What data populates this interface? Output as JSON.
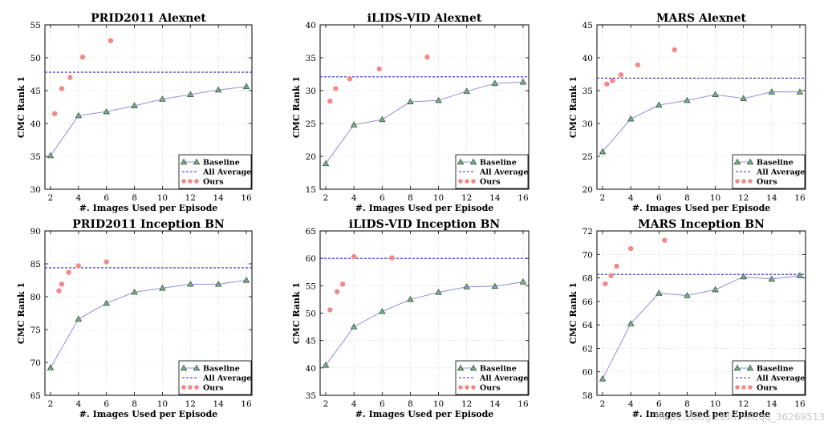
{
  "watermark": "https://blog.csdn.net/qq_36269513",
  "colors": {
    "baseline_line": "#8f8fe0",
    "baseline_marker_fill": "#7fae8c",
    "baseline_marker_edge": "#2d5a3b",
    "average": "#2a2ac8",
    "ours": "#f08a8a"
  },
  "chart_data": [
    {
      "type": "line",
      "title": "PRID2011 Alexnet",
      "xlabel": "#. Images Used per Episode",
      "ylabel": "CMC Rank 1",
      "xlim": [
        1.6,
        16.4
      ],
      "ylim": [
        30,
        55
      ],
      "xticks": [
        2,
        4,
        6,
        8,
        10,
        12,
        14,
        16
      ],
      "yticks": [
        30,
        35,
        40,
        45,
        50,
        55
      ],
      "legend": [
        "Baseline",
        "All Average",
        "Ours"
      ],
      "legend_position": "lower-right",
      "baseline": {
        "x": [
          2,
          4,
          6,
          8,
          10,
          12,
          14,
          16
        ],
        "y": [
          35.1,
          41.2,
          41.8,
          42.7,
          43.7,
          44.4,
          45.1,
          45.6
        ]
      },
      "all_average": 47.8,
      "ours": {
        "x": [
          2.3,
          2.8,
          3.4,
          4.3,
          6.3
        ],
        "y": [
          41.5,
          45.3,
          47.0,
          50.1,
          52.6
        ]
      }
    },
    {
      "type": "line",
      "title": "iLIDS-VID Alexnet",
      "xlabel": "#. Images Used per Episode",
      "ylabel": "CMC Rank 1",
      "xlim": [
        1.6,
        16.4
      ],
      "ylim": [
        15,
        40
      ],
      "xticks": [
        2,
        4,
        6,
        8,
        10,
        12,
        14,
        16
      ],
      "yticks": [
        15,
        20,
        25,
        30,
        35,
        40
      ],
      "legend": [
        "Baseline",
        "All Average",
        "Ours"
      ],
      "legend_position": "lower-right",
      "baseline": {
        "x": [
          2,
          4,
          6,
          8,
          10,
          12,
          14,
          16
        ],
        "y": [
          18.9,
          24.8,
          25.6,
          28.3,
          28.5,
          29.9,
          31.1,
          31.3
        ]
      },
      "all_average": 32.1,
      "ours": {
        "x": [
          2.3,
          2.7,
          3.7,
          5.8,
          9.2
        ],
        "y": [
          28.4,
          30.3,
          31.8,
          33.3,
          35.1
        ]
      }
    },
    {
      "type": "line",
      "title": "MARS Alexnet",
      "xlabel": "#. Images Used per Episode",
      "ylabel": "CMC Rank 1",
      "xlim": [
        1.6,
        16.4
      ],
      "ylim": [
        20,
        45
      ],
      "xticks": [
        2,
        4,
        6,
        8,
        10,
        12,
        14,
        16
      ],
      "yticks": [
        20,
        25,
        30,
        35,
        40,
        45
      ],
      "legend": [
        "Baseline",
        "All Average",
        "Ours"
      ],
      "legend_position": "lower-right",
      "baseline": {
        "x": [
          2,
          4,
          6,
          8,
          10,
          12,
          14,
          16
        ],
        "y": [
          25.7,
          30.7,
          32.8,
          33.5,
          34.4,
          33.8,
          34.8,
          34.8
        ]
      },
      "all_average": 36.9,
      "ours": {
        "x": [
          2.3,
          2.7,
          3.3,
          4.5,
          7.1
        ],
        "y": [
          36.0,
          36.5,
          37.4,
          38.9,
          41.2
        ]
      }
    },
    {
      "type": "line",
      "title": "PRID2011 Inception BN",
      "xlabel": "#. Images Used per Episode",
      "ylabel": "CMC Rank 1",
      "xlim": [
        1.6,
        16.4
      ],
      "ylim": [
        65,
        90
      ],
      "xticks": [
        2,
        4,
        6,
        8,
        10,
        12,
        14,
        16
      ],
      "yticks": [
        65,
        70,
        75,
        80,
        85,
        90
      ],
      "legend": [
        "Baseline",
        "All Average",
        "Ours"
      ],
      "legend_position": "lower-right",
      "baseline": {
        "x": [
          2,
          4,
          6,
          8,
          10,
          12,
          14,
          16
        ],
        "y": [
          69.2,
          76.6,
          79.0,
          80.7,
          81.3,
          81.9,
          81.9,
          82.5
        ]
      },
      "all_average": 84.4,
      "ours": {
        "x": [
          2.6,
          2.8,
          3.3,
          4.0,
          6.0
        ],
        "y": [
          80.9,
          81.9,
          83.7,
          84.7,
          85.3
        ]
      }
    },
    {
      "type": "line",
      "title": "iLIDS-VID Inception BN",
      "xlabel": "#. Images Used per Episode",
      "ylabel": "CMC Rank 1",
      "xlim": [
        1.6,
        16.4
      ],
      "ylim": [
        35,
        65
      ],
      "xticks": [
        2,
        4,
        6,
        8,
        10,
        12,
        14,
        16
      ],
      "yticks": [
        35,
        40,
        45,
        50,
        55,
        60,
        65
      ],
      "legend": [
        "Baseline",
        "All Average",
        "Ours"
      ],
      "legend_position": "lower-right",
      "baseline": {
        "x": [
          2,
          4,
          6,
          8,
          10,
          12,
          14,
          16
        ],
        "y": [
          40.5,
          47.5,
          50.3,
          52.5,
          53.8,
          54.8,
          54.9,
          55.7
        ]
      },
      "all_average": 60.0,
      "ours": {
        "x": [
          2.3,
          2.8,
          3.2,
          4.0,
          6.7
        ],
        "y": [
          50.6,
          53.9,
          55.3,
          60.3,
          60.1
        ]
      }
    },
    {
      "type": "line",
      "title": "MARS Inception BN",
      "xlabel": "#. Images Used per Episode",
      "ylabel": "CMC Rank 1",
      "xlim": [
        1.6,
        16.4
      ],
      "ylim": [
        58,
        72
      ],
      "xticks": [
        2,
        4,
        6,
        8,
        10,
        12,
        14,
        16
      ],
      "yticks": [
        58,
        60,
        62,
        64,
        66,
        68,
        70,
        72
      ],
      "legend": [
        "Baseline",
        "All Average",
        "Ours"
      ],
      "legend_position": "lower-right",
      "baseline": {
        "x": [
          2,
          4,
          6,
          8,
          10,
          12,
          14,
          16
        ],
        "y": [
          59.4,
          64.1,
          66.7,
          66.5,
          67.0,
          68.1,
          67.9,
          68.2
        ]
      },
      "all_average": 68.3,
      "ours": {
        "x": [
          2.2,
          2.6,
          3.0,
          4.0,
          6.4
        ],
        "y": [
          67.5,
          68.2,
          69.0,
          70.5,
          71.2
        ]
      }
    }
  ]
}
